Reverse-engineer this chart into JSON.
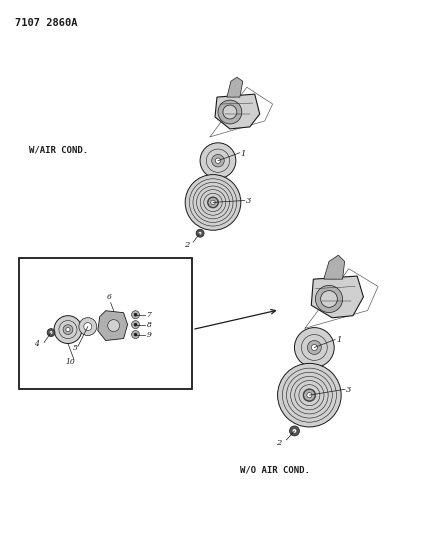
{
  "title_code": "7107 2860A",
  "background_color": "#ffffff",
  "line_color": "#1a1a1a",
  "text_color": "#1a1a1a",
  "label_w_air_cond": "W/AIR COND.",
  "label_wo_air_cond": "W/O AIR COND.",
  "fig_width": 4.28,
  "fig_height": 5.33,
  "dpi": 100,
  "gray_light": "#d0d0d0",
  "gray_mid": "#b0b0b0",
  "gray_dark": "#888888",
  "gray_darker": "#555555"
}
